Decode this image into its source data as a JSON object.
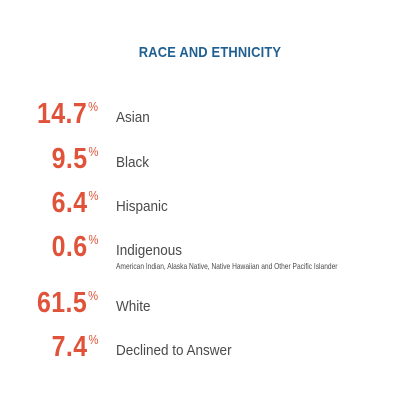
{
  "colors": {
    "title": "#1f5f91",
    "accent": "#e0533a",
    "label": "#4a4a4a",
    "background": "#ffffff"
  },
  "title": "RACE AND ETHNICITY",
  "percent_sign": "%",
  "stats": [
    {
      "value": "14.7",
      "label": "Asian"
    },
    {
      "value": "9.5",
      "label": "Black"
    },
    {
      "value": "6.4",
      "label": "Hispanic"
    },
    {
      "value": "0.6",
      "label": "Indigenous",
      "sublabel": "American Indian, Alaska Native, Native Hawaiian and Other Pacific Islander"
    },
    {
      "value": "61.5",
      "label": "White"
    },
    {
      "value": "7.4",
      "label": "Declined to Answer"
    }
  ]
}
